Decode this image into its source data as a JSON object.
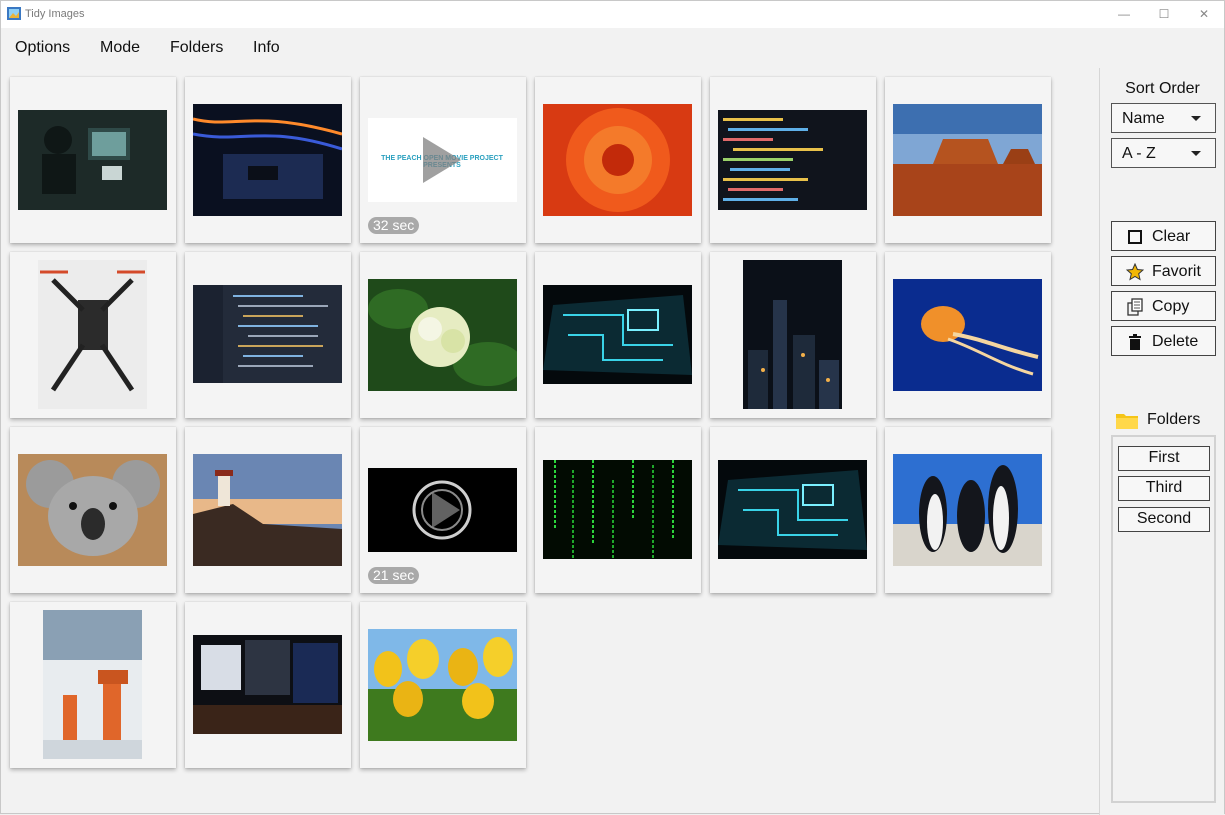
{
  "window": {
    "title": "Tidy Images",
    "minimize_glyph": "—",
    "maximize_glyph": "☐",
    "close_glyph": "✕"
  },
  "menu": [
    "Options",
    "Mode",
    "Folders",
    "Info"
  ],
  "thumbnails": [
    {
      "subject": "person-at-computer"
    },
    {
      "subject": "graphics-card"
    },
    {
      "subject": "video-peach",
      "caption": "THE PEACH OPEN MOVIE PROJECT PRESENTS",
      "duration": "32 sec"
    },
    {
      "subject": "red-flower"
    },
    {
      "subject": "code-screen"
    },
    {
      "subject": "desert-mesa"
    },
    {
      "subject": "drone"
    },
    {
      "subject": "code-editor"
    },
    {
      "subject": "hydrangea"
    },
    {
      "subject": "circuit-board"
    },
    {
      "subject": "city-night"
    },
    {
      "subject": "jellyfish"
    },
    {
      "subject": "koala"
    },
    {
      "subject": "lighthouse"
    },
    {
      "subject": "video-logo",
      "duration": "21 sec"
    },
    {
      "subject": "matrix-code"
    },
    {
      "subject": "circuit-board-2"
    },
    {
      "subject": "penguins"
    },
    {
      "subject": "robot-arm"
    },
    {
      "subject": "workstation"
    },
    {
      "subject": "tulips"
    }
  ],
  "sidebar": {
    "sort_order_label": "Sort Order",
    "sort_field": "Name",
    "sort_direction": "A - Z",
    "buttons": [
      {
        "label": "Clear",
        "icon": "checkbox-icon"
      },
      {
        "label": "Favorit",
        "icon": "star-icon"
      },
      {
        "label": "Copy",
        "icon": "copy-icon"
      },
      {
        "label": "Delete",
        "icon": "trash-icon"
      }
    ],
    "folders_label": "Folders",
    "folders": [
      "First",
      "Third",
      "Second"
    ]
  },
  "colors": {
    "background": "#f2f2f2",
    "card": "#f4f4f4",
    "badge": "#a9a9a9",
    "folder_icon": "#f5c518",
    "star": "#f2b705"
  }
}
